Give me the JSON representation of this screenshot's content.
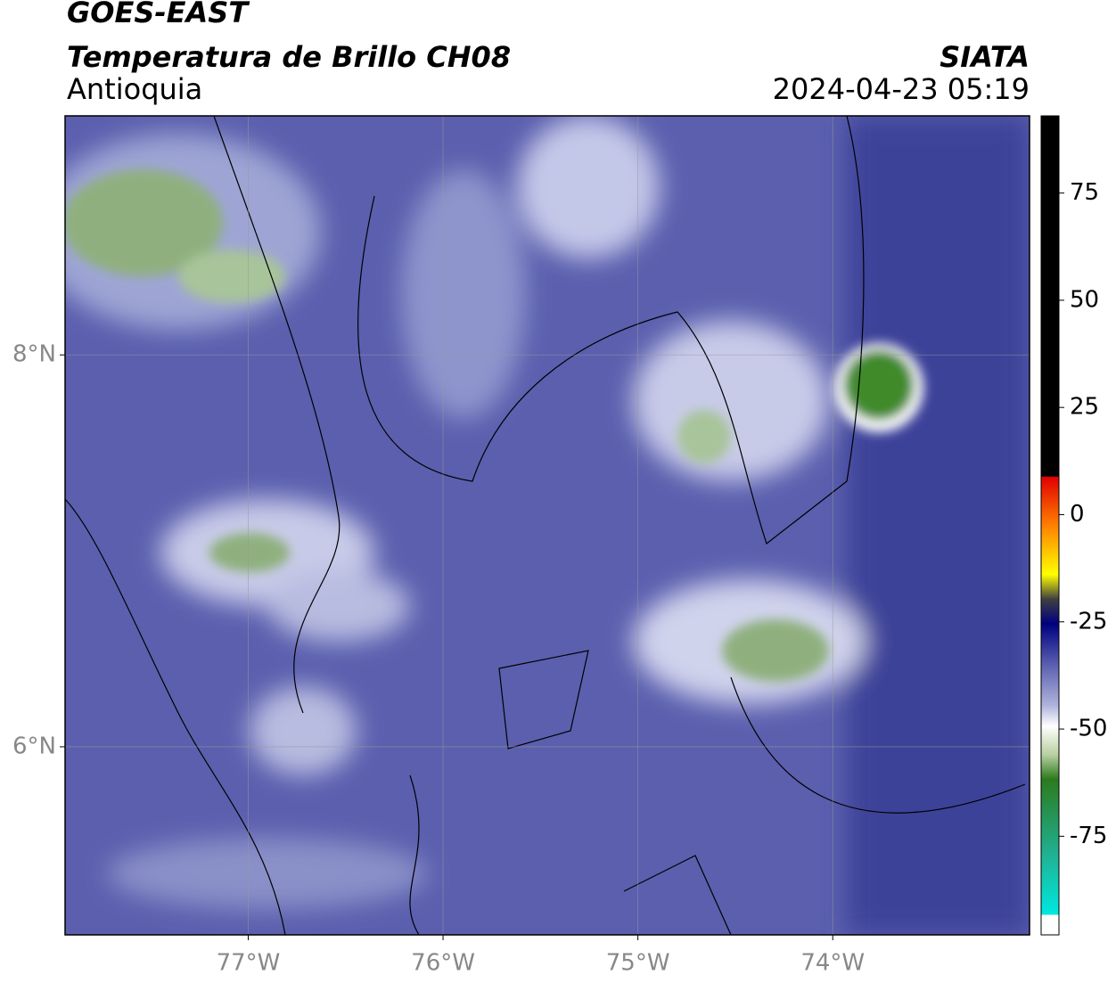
{
  "header": {
    "title": "GOES-EAST",
    "subtitle": "Temperatura de Brillo CH08",
    "region": "Antioquia",
    "source": "SIATA",
    "timestamp": "2024-04-23 05:19"
  },
  "map": {
    "xlim": [
      -77.94,
      -72.99
    ],
    "ylim": [
      5.04,
      9.22
    ],
    "xticks": [
      {
        "value": -77,
        "label": "77°W"
      },
      {
        "value": -76,
        "label": "76°W"
      },
      {
        "value": -75,
        "label": "75°W"
      },
      {
        "value": -74,
        "label": "74°W"
      }
    ],
    "yticks": [
      {
        "value": 8,
        "label": "8°N"
      },
      {
        "value": 6,
        "label": "6°N"
      }
    ]
  },
  "colorbar": {
    "lim": [
      -98,
      93
    ],
    "ticks": [
      75,
      50,
      25,
      0,
      -25,
      -50,
      -75
    ]
  }
}
